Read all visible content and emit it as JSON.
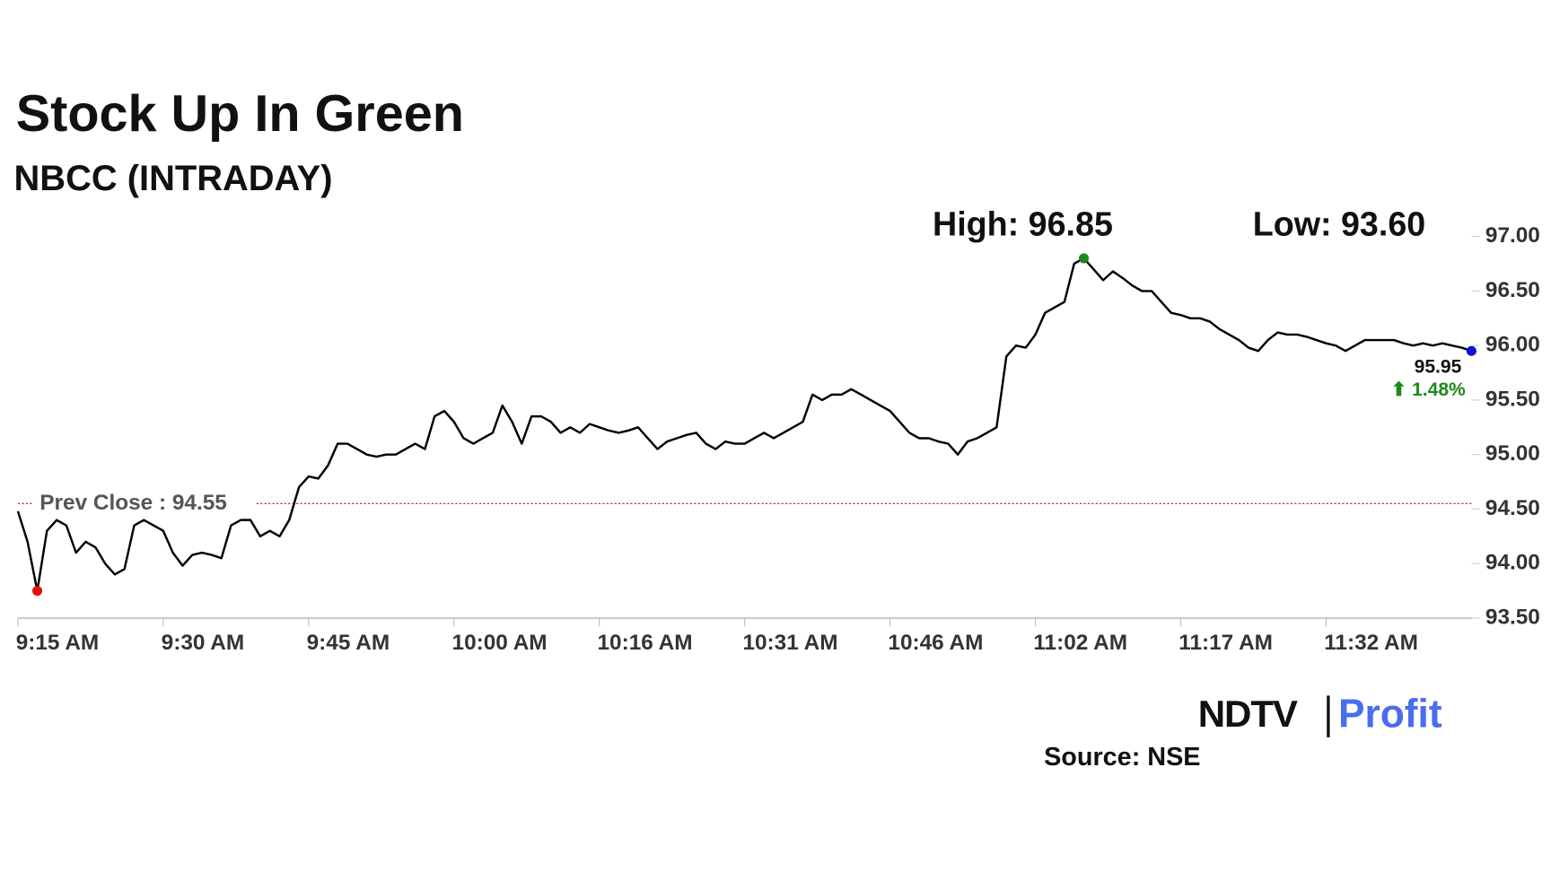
{
  "chart_data": {
    "type": "line",
    "title": "Stock Up In Green",
    "subtitle": "NBCC (INTRADAY)",
    "annotations": [
      "High: 96.85",
      "Low: 93.60"
    ],
    "reference_line": {
      "value": 94.55,
      "label": "Prev Close : 94.55",
      "color": "#b03030"
    },
    "last_label": "95.95",
    "change_label": "⬆ 1.48%",
    "change_color": "#1a8a1a",
    "color": "#000000",
    "high_color": "#1a8a1a",
    "low_color": "#e01010",
    "last_color": "#1010d0",
    "values": [
      94.48,
      94.2,
      93.75,
      94.3,
      94.4,
      94.35,
      94.1,
      94.2,
      94.15,
      94.0,
      93.9,
      93.95,
      94.35,
      94.4,
      94.35,
      94.3,
      94.1,
      93.98,
      94.08,
      94.1,
      94.08,
      94.05,
      94.35,
      94.4,
      94.4,
      94.25,
      94.3,
      94.25,
      94.4,
      94.7,
      94.8,
      94.78,
      94.9,
      95.1,
      95.1,
      95.05,
      95.0,
      94.98,
      95.0,
      95.0,
      95.05,
      95.1,
      95.05,
      95.35,
      95.4,
      95.3,
      95.15,
      95.1,
      95.15,
      95.2,
      95.45,
      95.3,
      95.1,
      95.35,
      95.35,
      95.3,
      95.2,
      95.25,
      95.2,
      95.28,
      95.25,
      95.22,
      95.2,
      95.22,
      95.25,
      95.15,
      95.05,
      95.12,
      95.15,
      95.18,
      95.2,
      95.1,
      95.05,
      95.12,
      95.1,
      95.1,
      95.15,
      95.2,
      95.15,
      95.2,
      95.25,
      95.3,
      95.55,
      95.5,
      95.55,
      95.55,
      95.6,
      95.55,
      95.5,
      95.45,
      95.4,
      95.3,
      95.2,
      95.15,
      95.15,
      95.12,
      95.1,
      95.0,
      95.12,
      95.15,
      95.2,
      95.25,
      95.9,
      96.0,
      95.98,
      96.1,
      96.3,
      96.35,
      96.4,
      96.75,
      96.8,
      96.7,
      96.6,
      96.68,
      96.62,
      96.55,
      96.5,
      96.5,
      96.4,
      96.3,
      96.28,
      96.25,
      96.25,
      96.22,
      96.15,
      96.1,
      96.05,
      95.98,
      95.95,
      96.05,
      96.12,
      96.1,
      96.1,
      96.08,
      96.05,
      96.02,
      96.0,
      95.95,
      96.0,
      96.05,
      96.05,
      96.05,
      96.05,
      96.02,
      96.0,
      96.02,
      96.0,
      96.02,
      96.0,
      95.98,
      95.95
    ],
    "xlim": [
      0,
      150
    ],
    "xticks": [
      {
        "value": 0,
        "label": "9:15 AM"
      },
      {
        "value": 15,
        "label": "9:30 AM"
      },
      {
        "value": 30,
        "label": "9:45 AM"
      },
      {
        "value": 45,
        "label": "10:00 AM"
      },
      {
        "value": 60,
        "label": "10:16 AM"
      },
      {
        "value": 75,
        "label": "10:31 AM"
      },
      {
        "value": 90,
        "label": "10:46 AM"
      },
      {
        "value": 105,
        "label": "11:02 AM"
      },
      {
        "value": 120,
        "label": "11:17 AM"
      },
      {
        "value": 135,
        "label": "11:32 AM"
      }
    ],
    "ylim": [
      93.5,
      97.0
    ],
    "yticks": [
      {
        "value": 93.5,
        "label": "93.50"
      },
      {
        "value": 94.0,
        "label": "94.00"
      },
      {
        "value": 94.5,
        "label": "94.50"
      },
      {
        "value": 95.0,
        "label": "95.00"
      },
      {
        "value": 95.5,
        "label": "95.50"
      },
      {
        "value": 96.0,
        "label": "96.00"
      },
      {
        "value": 96.5,
        "label": "96.50"
      },
      {
        "value": 97.0,
        "label": "97.00"
      }
    ],
    "logo": [
      "NDTV",
      "Profit"
    ],
    "source": "Source: NSE"
  }
}
